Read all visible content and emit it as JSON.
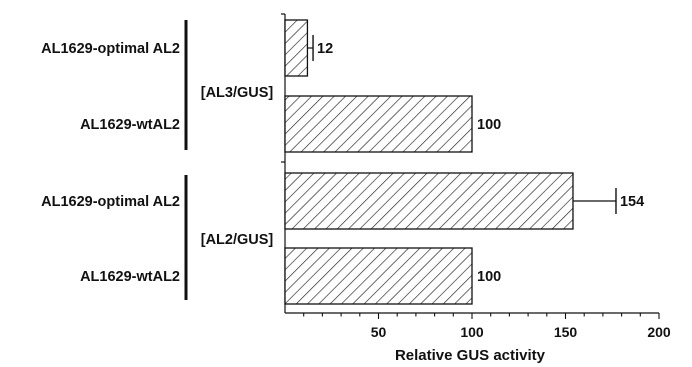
{
  "chart_data": {
    "type": "bar",
    "orientation": "horizontal",
    "xlabel": "Relative GUS activity",
    "xlim": [
      0,
      200
    ],
    "xticks": [
      50,
      100,
      150,
      200
    ],
    "groups": [
      {
        "name": "[AL3/GUS]",
        "bars": [
          {
            "label": "AL1629-optimal AL2",
            "value": 12,
            "error": 3,
            "value_label": "12"
          },
          {
            "label": "AL1629-wtAL2",
            "value": 100,
            "value_label": "100"
          }
        ]
      },
      {
        "name": "[AL2/GUS]",
        "bars": [
          {
            "label": "AL1629-optimal AL2",
            "value": 154,
            "error": 23,
            "value_label": "154"
          },
          {
            "label": "AL1629-wtAL2",
            "value": 100,
            "value_label": "100"
          }
        ]
      }
    ],
    "bar_fill": "diagonal-hatch",
    "grid": false,
    "legend": "none"
  }
}
